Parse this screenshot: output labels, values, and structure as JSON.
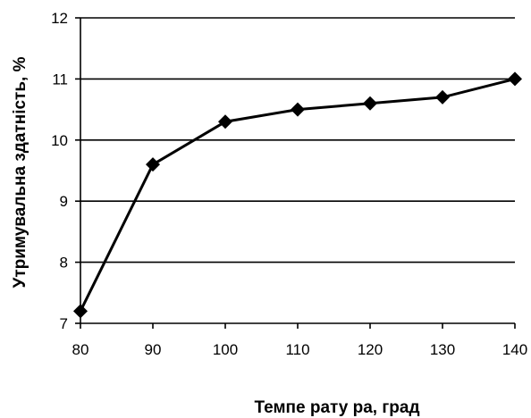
{
  "chart_data": {
    "type": "line",
    "title": "",
    "xlabel": "Темпе рату ра,  град",
    "ylabel": "Утримувальна здатність, %",
    "x": [
      80,
      90,
      100,
      110,
      120,
      130,
      140
    ],
    "series": [
      {
        "values": [
          7.2,
          9.6,
          10.3,
          10.5,
          10.6,
          10.7,
          11.0
        ]
      }
    ],
    "xlim": [
      80,
      140
    ],
    "ylim": [
      7,
      12
    ],
    "x_ticks": [
      80,
      90,
      100,
      110,
      120,
      130,
      140
    ],
    "y_ticks": [
      7,
      8,
      9,
      10,
      11,
      12
    ],
    "grid": "horizontal",
    "legend": "none",
    "line_color": "#000000",
    "marker": "diamond"
  }
}
